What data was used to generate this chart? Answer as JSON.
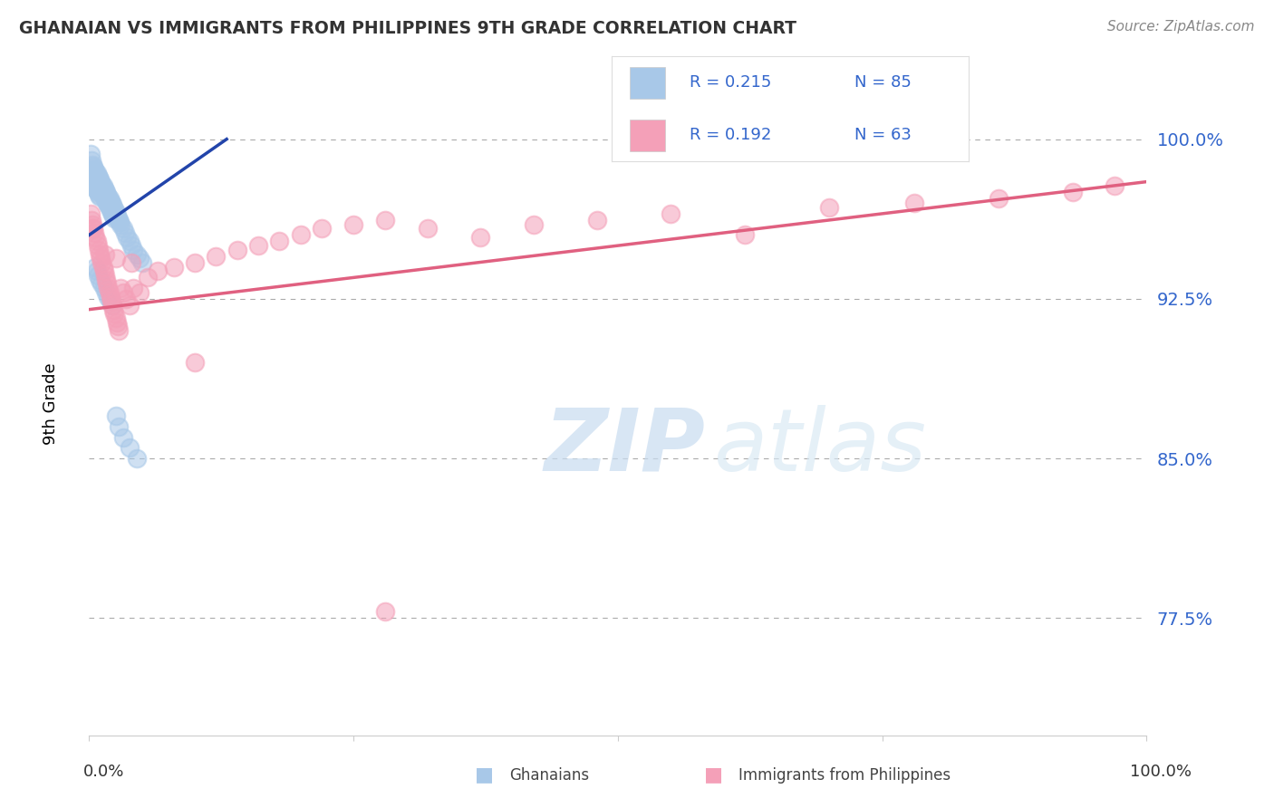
{
  "title": "GHANAIAN VS IMMIGRANTS FROM PHILIPPINES 9TH GRADE CORRELATION CHART",
  "source": "Source: ZipAtlas.com",
  "ylabel": "9th Grade",
  "yticks": [
    0.775,
    0.85,
    0.925,
    1.0
  ],
  "ytick_labels": [
    "77.5%",
    "85.0%",
    "92.5%",
    "100.0%"
  ],
  "xlim": [
    0.0,
    1.0
  ],
  "ylim": [
    0.72,
    1.035
  ],
  "legend_r1": "R = 0.215",
  "legend_n1": "N = 85",
  "legend_r2": "R = 0.192",
  "legend_n2": "N = 63",
  "blue_color": "#A8C8E8",
  "pink_color": "#F4A0B8",
  "blue_line_color": "#2244AA",
  "pink_line_color": "#E06080",
  "watermark_zip": "ZIP",
  "watermark_atlas": "atlas",
  "blue_x": [
    0.001,
    0.002,
    0.002,
    0.003,
    0.003,
    0.003,
    0.004,
    0.004,
    0.004,
    0.005,
    0.005,
    0.005,
    0.006,
    0.006,
    0.006,
    0.007,
    0.007,
    0.007,
    0.008,
    0.008,
    0.008,
    0.009,
    0.009,
    0.009,
    0.01,
    0.01,
    0.01,
    0.011,
    0.011,
    0.012,
    0.012,
    0.013,
    0.013,
    0.014,
    0.014,
    0.015,
    0.015,
    0.016,
    0.016,
    0.017,
    0.017,
    0.018,
    0.018,
    0.019,
    0.019,
    0.02,
    0.02,
    0.021,
    0.021,
    0.022,
    0.022,
    0.023,
    0.023,
    0.024,
    0.024,
    0.025,
    0.026,
    0.027,
    0.028,
    0.029,
    0.03,
    0.032,
    0.034,
    0.036,
    0.038,
    0.04,
    0.042,
    0.045,
    0.048,
    0.05,
    0.006,
    0.007,
    0.008,
    0.01,
    0.012,
    0.014,
    0.016,
    0.018,
    0.02,
    0.022,
    0.025,
    0.028,
    0.032,
    0.038,
    0.045
  ],
  "blue_y": [
    0.993,
    0.99,
    0.985,
    0.988,
    0.984,
    0.98,
    0.987,
    0.983,
    0.979,
    0.986,
    0.982,
    0.978,
    0.985,
    0.981,
    0.977,
    0.984,
    0.98,
    0.976,
    0.983,
    0.979,
    0.975,
    0.982,
    0.978,
    0.974,
    0.981,
    0.977,
    0.973,
    0.98,
    0.976,
    0.979,
    0.975,
    0.978,
    0.974,
    0.977,
    0.973,
    0.976,
    0.972,
    0.975,
    0.971,
    0.974,
    0.97,
    0.973,
    0.969,
    0.972,
    0.968,
    0.971,
    0.967,
    0.97,
    0.966,
    0.969,
    0.965,
    0.968,
    0.964,
    0.967,
    0.963,
    0.966,
    0.964,
    0.963,
    0.962,
    0.961,
    0.96,
    0.958,
    0.956,
    0.954,
    0.952,
    0.95,
    0.948,
    0.946,
    0.944,
    0.942,
    0.94,
    0.938,
    0.936,
    0.934,
    0.932,
    0.93,
    0.928,
    0.926,
    0.924,
    0.922,
    0.87,
    0.865,
    0.86,
    0.855,
    0.85
  ],
  "pink_x": [
    0.001,
    0.002,
    0.003,
    0.004,
    0.005,
    0.006,
    0.007,
    0.008,
    0.009,
    0.01,
    0.011,
    0.012,
    0.013,
    0.014,
    0.015,
    0.016,
    0.017,
    0.018,
    0.019,
    0.02,
    0.021,
    0.022,
    0.023,
    0.024,
    0.025,
    0.026,
    0.027,
    0.028,
    0.03,
    0.032,
    0.035,
    0.038,
    0.042,
    0.048,
    0.055,
    0.065,
    0.08,
    0.1,
    0.12,
    0.14,
    0.16,
    0.18,
    0.2,
    0.22,
    0.25,
    0.28,
    0.32,
    0.37,
    0.42,
    0.48,
    0.55,
    0.62,
    0.7,
    0.78,
    0.86,
    0.93,
    0.97,
    0.003,
    0.015,
    0.025,
    0.04,
    0.28,
    0.1
  ],
  "pink_y": [
    0.965,
    0.962,
    0.96,
    0.958,
    0.956,
    0.954,
    0.952,
    0.95,
    0.948,
    0.946,
    0.944,
    0.942,
    0.94,
    0.938,
    0.936,
    0.934,
    0.932,
    0.93,
    0.928,
    0.926,
    0.924,
    0.922,
    0.92,
    0.918,
    0.916,
    0.914,
    0.912,
    0.91,
    0.93,
    0.928,
    0.925,
    0.922,
    0.93,
    0.928,
    0.935,
    0.938,
    0.94,
    0.942,
    0.945,
    0.948,
    0.95,
    0.952,
    0.955,
    0.958,
    0.96,
    0.962,
    0.958,
    0.954,
    0.96,
    0.962,
    0.965,
    0.955,
    0.968,
    0.97,
    0.972,
    0.975,
    0.978,
    0.958,
    0.946,
    0.944,
    0.942,
    0.778,
    0.895
  ],
  "blue_trend_x": [
    0.0,
    0.13
  ],
  "blue_trend_y": [
    0.955,
    1.0
  ],
  "pink_trend_x": [
    0.0,
    1.0
  ],
  "pink_trend_y": [
    0.92,
    0.98
  ]
}
